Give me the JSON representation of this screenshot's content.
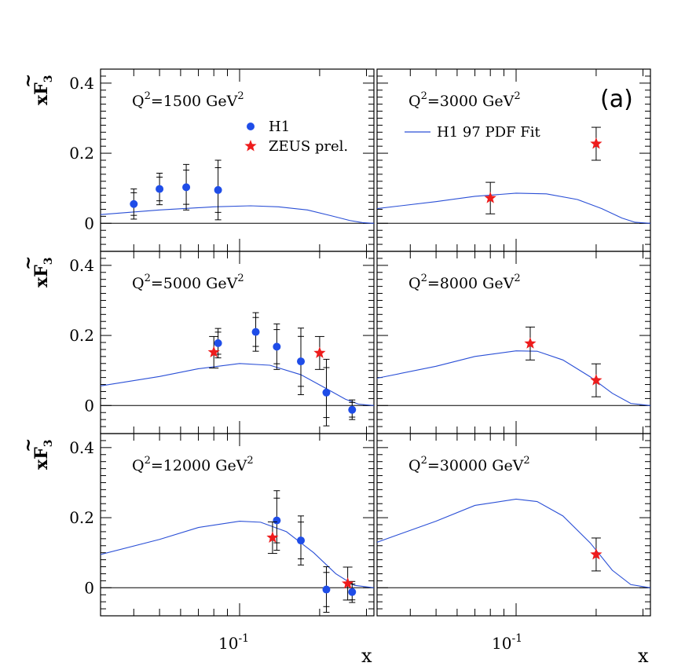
{
  "figure": {
    "panel_label": "(a)",
    "y_axis_title": {
      "main": "xF",
      "tilde": "~",
      "sub": "3"
    },
    "x_axis_title": "x",
    "x_tick_label": {
      "base": "10",
      "exp": "-1"
    },
    "y_tick_labels": [
      "0",
      "0.2",
      "0.4"
    ],
    "legend": {
      "h1": "H1",
      "zeus": "ZEUS prel.",
      "fit": "H1 97 PDF Fit"
    },
    "colors": {
      "h1": "#1f4de8",
      "zeus": "#ee1c1c",
      "fit": "#2a4fd6"
    }
  },
  "chart_data": {
    "type": "scatter",
    "x_scale": "log",
    "xlim": [
      0.03,
      0.32
    ],
    "ylim": [
      -0.08,
      0.44
    ],
    "panels": [
      {
        "q2": "1500",
        "label_pre": "Q",
        "label_exp": "2",
        "label_mid": "=1500 GeV",
        "label_unit_exp": "2",
        "fit": [
          [
            0.03,
            0.025
          ],
          [
            0.05,
            0.038
          ],
          [
            0.08,
            0.047
          ],
          [
            0.11,
            0.05
          ],
          [
            0.14,
            0.047
          ],
          [
            0.18,
            0.038
          ],
          [
            0.22,
            0.022
          ],
          [
            0.26,
            0.008
          ],
          [
            0.29,
            0.002
          ],
          [
            0.32,
            0.0
          ]
        ],
        "h1": [
          {
            "x": 0.04,
            "y": 0.055,
            "err": 0.043
          },
          {
            "x": 0.05,
            "y": 0.098,
            "err": 0.045
          },
          {
            "x": 0.063,
            "y": 0.103,
            "err": 0.065
          },
          {
            "x": 0.083,
            "y": 0.095,
            "err": 0.085
          }
        ],
        "zeus": []
      },
      {
        "q2": "3000",
        "label_pre": "Q",
        "label_exp": "2",
        "label_mid": "=3000 GeV",
        "label_unit_exp": "2",
        "fit": [
          [
            0.03,
            0.042
          ],
          [
            0.05,
            0.062
          ],
          [
            0.07,
            0.077
          ],
          [
            0.1,
            0.086
          ],
          [
            0.13,
            0.084
          ],
          [
            0.17,
            0.068
          ],
          [
            0.21,
            0.042
          ],
          [
            0.25,
            0.015
          ],
          [
            0.28,
            0.003
          ],
          [
            0.32,
            0.0
          ]
        ],
        "h1": [],
        "zeus": [
          {
            "x": 0.08,
            "y": 0.072,
            "err": 0.045
          },
          {
            "x": 0.2,
            "y": 0.227,
            "err": 0.047
          }
        ]
      },
      {
        "q2": "5000",
        "label_pre": "Q",
        "label_exp": "2",
        "label_mid": "=5000 GeV",
        "label_unit_exp": "2",
        "fit": [
          [
            0.03,
            0.056
          ],
          [
            0.05,
            0.083
          ],
          [
            0.07,
            0.105
          ],
          [
            0.1,
            0.12
          ],
          [
            0.13,
            0.115
          ],
          [
            0.17,
            0.088
          ],
          [
            0.21,
            0.05
          ],
          [
            0.25,
            0.018
          ],
          [
            0.28,
            0.004
          ],
          [
            0.32,
            0.0
          ]
        ],
        "h1": [
          {
            "x": 0.083,
            "y": 0.178,
            "err": 0.042
          },
          {
            "x": 0.115,
            "y": 0.21,
            "err": 0.055
          },
          {
            "x": 0.138,
            "y": 0.168,
            "err": 0.065
          },
          {
            "x": 0.17,
            "y": 0.126,
            "err": 0.095
          },
          {
            "x": 0.212,
            "y": 0.037,
            "err": 0.095
          },
          {
            "x": 0.265,
            "y": -0.012,
            "err": 0.028
          }
        ],
        "zeus": [
          {
            "x": 0.08,
            "y": 0.152,
            "err": 0.045
          },
          {
            "x": 0.2,
            "y": 0.15,
            "err": 0.047
          }
        ]
      },
      {
        "q2": "8000",
        "label_pre": "Q",
        "label_exp": "2",
        "label_mid": "=8000 GeV",
        "label_unit_exp": "2",
        "fit": [
          [
            0.03,
            0.078
          ],
          [
            0.05,
            0.112
          ],
          [
            0.07,
            0.14
          ],
          [
            0.1,
            0.156
          ],
          [
            0.12,
            0.155
          ],
          [
            0.15,
            0.13
          ],
          [
            0.19,
            0.082
          ],
          [
            0.23,
            0.035
          ],
          [
            0.27,
            0.006
          ],
          [
            0.32,
            0.0
          ]
        ],
        "h1": [],
        "zeus": [
          {
            "x": 0.113,
            "y": 0.177,
            "err": 0.047
          },
          {
            "x": 0.2,
            "y": 0.072,
            "err": 0.047
          }
        ]
      },
      {
        "q2": "12000",
        "label_pre": "Q",
        "label_exp": "2",
        "label_mid": "=12000 GeV",
        "label_unit_exp": "2",
        "fit": [
          [
            0.03,
            0.095
          ],
          [
            0.05,
            0.138
          ],
          [
            0.07,
            0.172
          ],
          [
            0.1,
            0.19
          ],
          [
            0.12,
            0.187
          ],
          [
            0.15,
            0.16
          ],
          [
            0.19,
            0.1
          ],
          [
            0.23,
            0.04
          ],
          [
            0.27,
            0.007
          ],
          [
            0.32,
            0.0
          ]
        ],
        "h1": [
          {
            "x": 0.138,
            "y": 0.192,
            "err": 0.085
          },
          {
            "x": 0.17,
            "y": 0.135,
            "err": 0.07
          },
          {
            "x": 0.212,
            "y": -0.005,
            "err": 0.065
          },
          {
            "x": 0.265,
            "y": -0.012,
            "err": 0.03
          }
        ],
        "zeus": [
          {
            "x": 0.133,
            "y": 0.143,
            "err": 0.045
          },
          {
            "x": 0.255,
            "y": 0.012,
            "err": 0.047
          }
        ]
      },
      {
        "q2": "30000",
        "label_pre": "Q",
        "label_exp": "2",
        "label_mid": "=30000 GeV",
        "label_unit_exp": "2",
        "fit": [
          [
            0.03,
            0.13
          ],
          [
            0.05,
            0.19
          ],
          [
            0.07,
            0.235
          ],
          [
            0.1,
            0.253
          ],
          [
            0.12,
            0.246
          ],
          [
            0.15,
            0.205
          ],
          [
            0.19,
            0.128
          ],
          [
            0.23,
            0.05
          ],
          [
            0.27,
            0.009
          ],
          [
            0.32,
            0.0
          ]
        ],
        "h1": [],
        "zeus": [
          {
            "x": 0.2,
            "y": 0.095,
            "err": 0.047
          }
        ]
      }
    ]
  }
}
